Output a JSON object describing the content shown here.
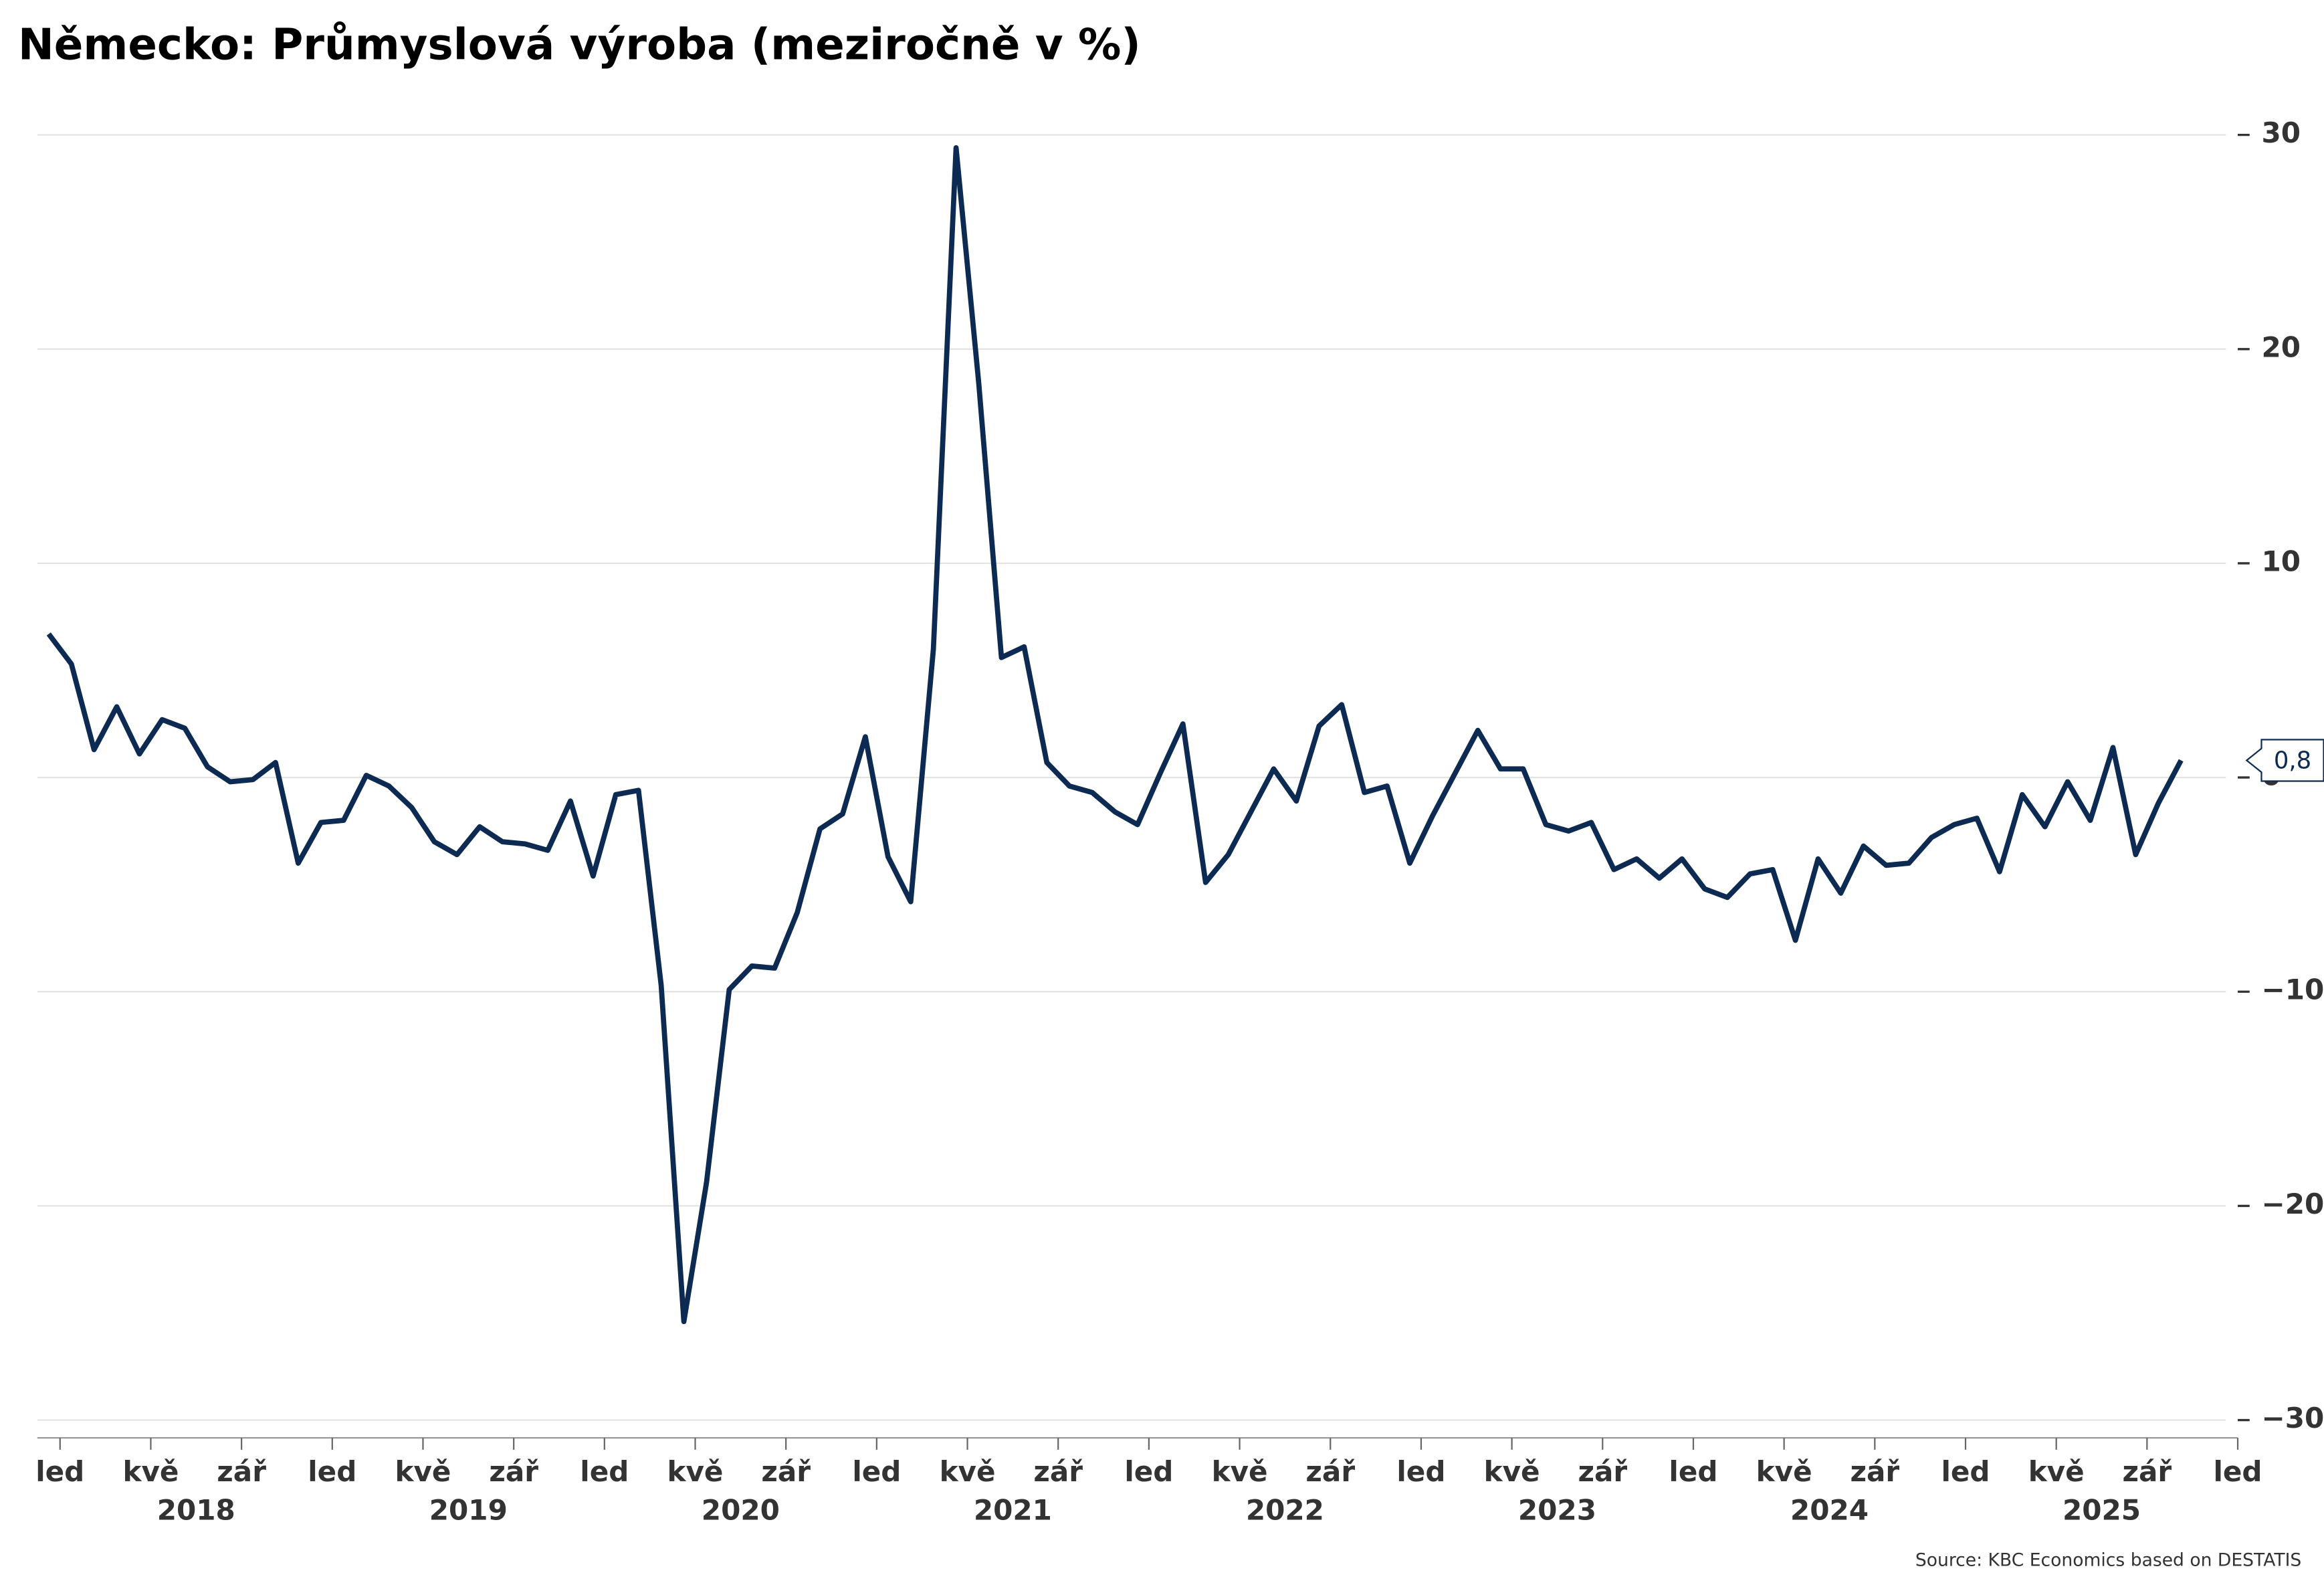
{
  "chart_data": {
    "type": "line",
    "title": "Německo: Průmyslová výroba (meziročně v %)",
    "source": "Source: KBC Economics based on DESTATIS",
    "x": [
      -0.5,
      0.5,
      1.5,
      2.5,
      3.5,
      4.5,
      5.5,
      6.5,
      7.5,
      8.5,
      9.5,
      10.5,
      11.5,
      12.5,
      13.5,
      14.5,
      15.5,
      16.5,
      17.5,
      18.5,
      19.5,
      20.5,
      21.5,
      22.5,
      23.5,
      24.5,
      25.5,
      26.5,
      27.5,
      28.5,
      29.5,
      30.5,
      31.5,
      32.5,
      33.5,
      34.5,
      35.5,
      36.5,
      37.5,
      38.5,
      39.5,
      40.5,
      41.5,
      42.5,
      43.5,
      44.5,
      45.5,
      46.5,
      47.5,
      48.5,
      49.5,
      50.5,
      51.5,
      52.5,
      53.5,
      54.5,
      55.5,
      56.5,
      57.5,
      58.5,
      59.5,
      60.5,
      61.5,
      62.5,
      63.5,
      64.5,
      65.5,
      66.5,
      67.5,
      68.5,
      69.5,
      70.5,
      71.5,
      72.5,
      73.5,
      74.5,
      75.5,
      76.5,
      77.5,
      78.5,
      79.5,
      80.5,
      81.5,
      82.5,
      83.5,
      84.5,
      85.5,
      86.5,
      87.5,
      88.5,
      89.5,
      90.5,
      91.5,
      92.5,
      93.5
    ],
    "series": [
      {
        "name": "Průmyslová výroba",
        "color": "#0d2b52",
        "values": [
          6.7,
          5.3,
          1.3,
          3.3,
          1.1,
          2.7,
          2.3,
          0.5,
          -0.2,
          -0.1,
          0.7,
          -4.0,
          -2.1,
          -2.0,
          0.1,
          -0.4,
          -1.4,
          -3.0,
          -3.6,
          -2.3,
          -3.0,
          -3.1,
          -3.4,
          -1.1,
          -4.6,
          -0.8,
          -0.6,
          -9.7,
          -25.4,
          -18.9,
          -9.9,
          -8.8,
          -8.9,
          -6.3,
          -2.4,
          -1.7,
          1.9,
          -3.7,
          -5.8,
          6.0,
          29.4,
          18.4,
          5.6,
          6.1,
          0.7,
          -0.4,
          -0.7,
          -1.6,
          -2.2,
          0.2,
          2.5,
          -4.9,
          -3.6,
          -1.6,
          0.4,
          -1.1,
          2.4,
          3.4,
          -0.7,
          -0.4,
          -4.0,
          -1.8,
          0.2,
          2.2,
          0.4,
          0.4,
          -2.2,
          -2.5,
          -2.1,
          -4.3,
          -3.8,
          -4.7,
          -3.8,
          -5.2,
          -5.6,
          -4.5,
          -4.3,
          -7.6,
          -3.8,
          -5.4,
          -3.2,
          -4.1,
          -4.0,
          -2.8,
          -2.2,
          -1.9,
          -4.4,
          -0.8,
          -2.3,
          -0.2,
          -2.0,
          1.4,
          -3.6,
          -1.2,
          0.8
        ],
        "value_labels": [
          null,
          null,
          null,
          null,
          null,
          null,
          null,
          null,
          null,
          null,
          null,
          null,
          null,
          null,
          null,
          null,
          null,
          null,
          null,
          null,
          null,
          null,
          null,
          null,
          null,
          null,
          null,
          null,
          null,
          null,
          null,
          null,
          null,
          null,
          null,
          null,
          null,
          null,
          null,
          null,
          null,
          null,
          null,
          null,
          null,
          null,
          null,
          null,
          null,
          null,
          null,
          null,
          null,
          null,
          null,
          null,
          null,
          null,
          null,
          null,
          null,
          null,
          null,
          null,
          null,
          null,
          null,
          null,
          null,
          null,
          null,
          null,
          null,
          null,
          null,
          null,
          null,
          null,
          null,
          null,
          null,
          null,
          null,
          null,
          null,
          null,
          null,
          null,
          null,
          null,
          null,
          null,
          null,
          null,
          "0,8"
        ]
      }
    ],
    "xlim": [
      -1,
      96
    ],
    "xticks": [
      {
        "value": 0,
        "label": "led"
      },
      {
        "value": 4,
        "label": "kvě"
      },
      {
        "value": 8,
        "label": "zář"
      },
      {
        "value": 12,
        "label": "led"
      },
      {
        "value": 16,
        "label": "kvě"
      },
      {
        "value": 20,
        "label": "zář"
      },
      {
        "value": 24,
        "label": "led"
      },
      {
        "value": 28,
        "label": "kvě"
      },
      {
        "value": 32,
        "label": "zář"
      },
      {
        "value": 36,
        "label": "led"
      },
      {
        "value": 40,
        "label": "kvě"
      },
      {
        "value": 44,
        "label": "zář"
      },
      {
        "value": 48,
        "label": "led"
      },
      {
        "value": 52,
        "label": "kvě"
      },
      {
        "value": 56,
        "label": "zář"
      },
      {
        "value": 60,
        "label": "led"
      },
      {
        "value": 64,
        "label": "kvě"
      },
      {
        "value": 68,
        "label": "zář"
      },
      {
        "value": 72,
        "label": "led"
      },
      {
        "value": 76,
        "label": "kvě"
      },
      {
        "value": 80,
        "label": "zář"
      },
      {
        "value": 84,
        "label": "led"
      },
      {
        "value": 88,
        "label": "kvě"
      },
      {
        "value": 92,
        "label": "zář"
      },
      {
        "value": 96,
        "label": "led"
      }
    ],
    "year_labels": [
      {
        "value": 6,
        "label": "2018"
      },
      {
        "value": 18,
        "label": "2019"
      },
      {
        "value": 30,
        "label": "2020"
      },
      {
        "value": 42,
        "label": "2021"
      },
      {
        "value": 54,
        "label": "2022"
      },
      {
        "value": 66,
        "label": "2023"
      },
      {
        "value": 78,
        "label": "2024"
      },
      {
        "value": 90,
        "label": "2025"
      }
    ],
    "ylim": [
      -30,
      30
    ],
    "yticks": [
      30,
      20,
      10,
      0,
      {
        "value": -10,
        "label": "−10"
      },
      {
        "value": -20,
        "label": "−20"
      },
      {
        "value": -30,
        "label": "−30"
      }
    ],
    "grid": true
  }
}
